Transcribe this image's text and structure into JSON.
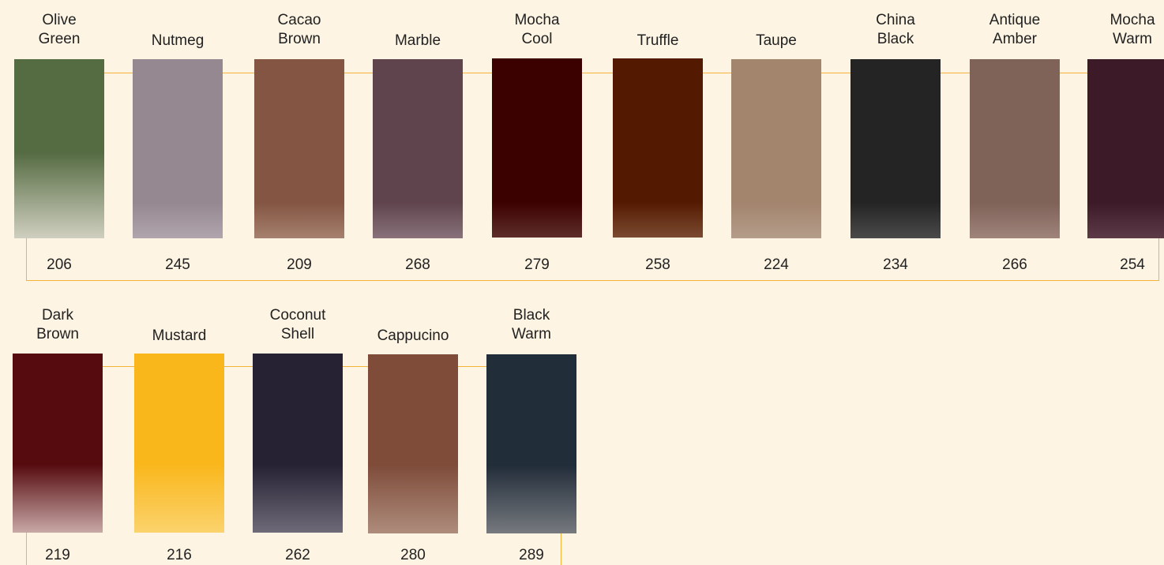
{
  "rows": [
    {
      "swatches": [
        {
          "name": "Olive\nGreen",
          "code": "206",
          "color": "#556b42",
          "fade": "#cfcfbf"
        },
        {
          "name": "Nutmeg",
          "code": "245",
          "color": "#958890",
          "fade": "#b1a5ad"
        },
        {
          "name": "Cacao\nBrown",
          "code": "209",
          "color": "#835542",
          "fade": "#a6806e"
        },
        {
          "name": "Marble",
          "code": "268",
          "color": "#5f444d",
          "fade": "#88717a"
        },
        {
          "name": "Mocha\nCool",
          "code": "279",
          "color": "#3b0000",
          "fade": "#5e2d29"
        },
        {
          "name": "Truffle",
          "code": "258",
          "color": "#541a01",
          "fade": "#7a4a30"
        },
        {
          "name": "Taupe",
          "code": "224",
          "color": "#a3846d",
          "fade": "#b49d8a"
        },
        {
          "name": "China\nBlack",
          "code": "234",
          "color": "#242424",
          "fade": "#4a4a4a"
        },
        {
          "name": "Antique\nAmber",
          "code": "266",
          "color": "#7f6258",
          "fade": "#9e847b"
        },
        {
          "name": "Mocha\nWarm",
          "code": "254",
          "color": "#3c1a27",
          "fade": "#5c3a48"
        }
      ]
    },
    {
      "swatches": [
        {
          "name": "Dark\nBrown",
          "code": "219",
          "color": "#560b0f",
          "fade": "#c8a8a6"
        },
        {
          "name": "Mustard",
          "code": "216",
          "color": "#f9b71c",
          "fade": "#fbd26c"
        },
        {
          "name": "Coconut\nShell",
          "code": "262",
          "color": "#262133",
          "fade": "#6e6a78"
        },
        {
          "name": "Cappucino",
          "code": "280",
          "color": "#7f4c3a",
          "fade": "#ae8c7c"
        },
        {
          "name": "Black\nWarm",
          "code": "289",
          "color": "#222d3a",
          "fade": "#76797e"
        }
      ]
    }
  ]
}
